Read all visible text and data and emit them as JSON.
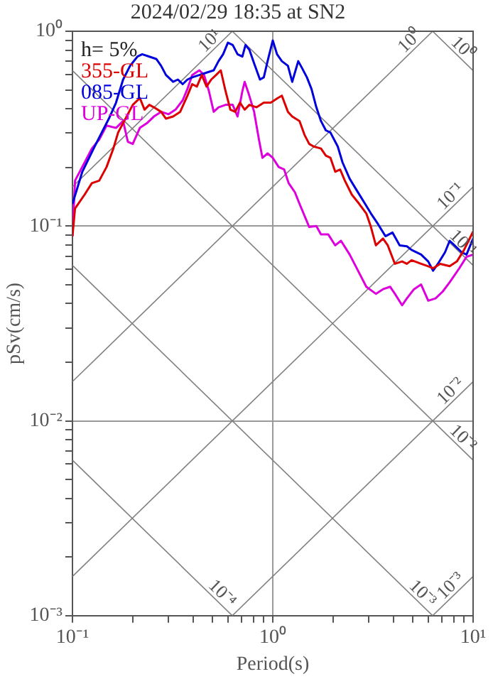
{
  "chart_data": {
    "type": "line",
    "title": "2024/02/29 18:35 at SN2",
    "xlabel": "Period(s)",
    "ylabel": "pSv(cm/s)",
    "annotations": [
      "h= 5%"
    ],
    "log": "xy",
    "legend": "top left",
    "grid": true,
    "xlim": [
      0.1,
      10
    ],
    "ylim": [
      0.001,
      1
    ],
    "xticks": [
      {
        "value": 0.1,
        "label": "10⁻¹"
      },
      {
        "value": 0.2,
        "label": null
      },
      {
        "value": 0.3,
        "label": null
      },
      {
        "value": 0.4,
        "label": null
      },
      {
        "value": 0.5,
        "label": null
      },
      {
        "value": 0.6,
        "label": null
      },
      {
        "value": 0.7,
        "label": null
      },
      {
        "value": 0.8,
        "label": null
      },
      {
        "value": 0.9,
        "label": null
      },
      {
        "value": 1,
        "label": "10⁰"
      },
      {
        "value": 2,
        "label": null
      },
      {
        "value": 3,
        "label": null
      },
      {
        "value": 4,
        "label": null
      },
      {
        "value": 5,
        "label": null
      },
      {
        "value": 6,
        "label": null
      },
      {
        "value": 7,
        "label": null
      },
      {
        "value": 8,
        "label": null
      },
      {
        "value": 9,
        "label": null
      },
      {
        "value": 10,
        "label": "10¹"
      }
    ],
    "yticks": [
      {
        "value": 0.001,
        "label": "10⁻³"
      },
      {
        "value": 0.002,
        "label": null
      },
      {
        "value": 0.003,
        "label": null
      },
      {
        "value": 0.004,
        "label": null
      },
      {
        "value": 0.005,
        "label": null
      },
      {
        "value": 0.006,
        "label": null
      },
      {
        "value": 0.007,
        "label": null
      },
      {
        "value": 0.008,
        "label": null
      },
      {
        "value": 0.009,
        "label": null
      },
      {
        "value": 0.01,
        "label": "10⁻²"
      },
      {
        "value": 0.02,
        "label": null
      },
      {
        "value": 0.03,
        "label": null
      },
      {
        "value": 0.04,
        "label": null
      },
      {
        "value": 0.05,
        "label": null
      },
      {
        "value": 0.06,
        "label": null
      },
      {
        "value": 0.07,
        "label": null
      },
      {
        "value": 0.08,
        "label": null
      },
      {
        "value": 0.09,
        "label": null
      },
      {
        "value": 0.1,
        "label": "10⁻¹"
      },
      {
        "value": 0.2,
        "label": null
      },
      {
        "value": 0.3,
        "label": null
      },
      {
        "value": 0.4,
        "label": null
      },
      {
        "value": 0.5,
        "label": null
      },
      {
        "value": 0.6,
        "label": null
      },
      {
        "value": 0.7,
        "label": null
      },
      {
        "value": 0.8,
        "label": null
      },
      {
        "value": 0.9,
        "label": null
      },
      {
        "value": 1,
        "label": "10⁰"
      }
    ],
    "series": [
      {
        "name": "355-GL",
        "color": "#dd0000",
        "x": [
          0.1,
          0.103,
          0.115,
          0.125,
          0.136,
          0.148,
          0.16,
          0.169,
          0.184,
          0.2,
          0.217,
          0.229,
          0.242,
          0.255,
          0.277,
          0.293,
          0.318,
          0.345,
          0.375,
          0.396,
          0.418,
          0.442,
          0.467,
          0.493,
          0.521,
          0.55,
          0.581,
          0.614,
          0.649,
          0.686,
          0.724,
          0.764,
          0.83,
          0.902,
          0.977,
          1.06,
          1.11,
          1.19,
          1.25,
          1.36,
          1.44,
          1.52,
          1.6,
          1.74,
          1.84,
          1.94,
          2.05,
          2.17,
          2.29,
          2.48,
          2.7,
          2.93,
          3.09,
          3.27,
          3.55,
          3.75,
          4.07,
          4.42,
          4.67,
          4.93,
          5.5,
          5.97,
          6.31,
          6.85,
          7.64,
          8.3,
          9.01,
          10
        ],
        "values": [
          0.0887,
          0.123,
          0.145,
          0.166,
          0.171,
          0.201,
          0.25,
          0.302,
          0.356,
          0.419,
          0.454,
          0.396,
          0.419,
          0.407,
          0.386,
          0.356,
          0.365,
          0.386,
          0.467,
          0.535,
          0.52,
          0.596,
          0.52,
          0.565,
          0.596,
          0.63,
          0.493,
          0.396,
          0.386,
          0.43,
          0.396,
          0.419,
          0.407,
          0.43,
          0.43,
          0.454,
          0.467,
          0.386,
          0.365,
          0.346,
          0.294,
          0.264,
          0.256,
          0.25,
          0.23,
          0.224,
          0.19,
          0.195,
          0.171,
          0.145,
          0.13,
          0.116,
          0.0989,
          0.0796,
          0.0863,
          0.0796,
          0.064,
          0.0658,
          0.064,
          0.0668,
          0.064,
          0.0622,
          0.0607,
          0.064,
          0.0622,
          0.0658,
          0.0754,
          0.0937
        ]
      },
      {
        "name": "085-GL",
        "color": "#0000dd",
        "x": [
          0.1,
          0.112,
          0.129,
          0.14,
          0.152,
          0.165,
          0.179,
          0.194,
          0.211,
          0.223,
          0.242,
          0.262,
          0.277,
          0.293,
          0.318,
          0.336,
          0.355,
          0.375,
          0.396,
          0.43,
          0.467,
          0.507,
          0.536,
          0.565,
          0.597,
          0.631,
          0.667,
          0.705,
          0.731,
          0.764,
          0.807,
          0.863,
          0.902,
          0.942,
          1.0,
          1.05,
          1.11,
          1.19,
          1.25,
          1.34,
          1.4,
          1.48,
          1.56,
          1.65,
          1.74,
          1.84,
          1.94,
          2.11,
          2.23,
          2.42,
          2.62,
          2.85,
          3.09,
          3.36,
          3.65,
          3.96,
          4.3,
          4.67,
          4.93,
          5.5,
          5.97,
          6.31,
          6.67,
          7.24,
          7.64,
          8.07,
          8.77,
          9.27,
          10
        ],
        "values": [
          0.13,
          0.19,
          0.256,
          0.302,
          0.356,
          0.43,
          0.565,
          0.665,
          0.741,
          0.762,
          0.741,
          0.721,
          0.665,
          0.596,
          0.55,
          0.565,
          0.535,
          0.565,
          0.58,
          0.596,
          0.613,
          0.63,
          0.702,
          0.762,
          0.873,
          0.85,
          0.762,
          0.741,
          0.85,
          0.804,
          0.684,
          0.565,
          0.58,
          0.702,
          0.897,
          0.762,
          0.702,
          0.665,
          0.55,
          0.702,
          0.647,
          0.58,
          0.506,
          0.407,
          0.346,
          0.31,
          0.302,
          0.256,
          0.212,
          0.175,
          0.153,
          0.133,
          0.116,
          0.102,
          0.0887,
          0.0926,
          0.0796,
          0.0787,
          0.0754,
          0.0714,
          0.0658,
          0.059,
          0.064,
          0.0733,
          0.084,
          0.0796,
          0.0733,
          0.0714,
          0.0863
        ]
      },
      {
        "name": "UP-GL",
        "color": "#dd00dd",
        "x": [
          0.1,
          0.103,
          0.115,
          0.125,
          0.136,
          0.148,
          0.165,
          0.179,
          0.189,
          0.2,
          0.217,
          0.235,
          0.255,
          0.277,
          0.302,
          0.327,
          0.355,
          0.375,
          0.396,
          0.43,
          0.454,
          0.48,
          0.507,
          0.536,
          0.581,
          0.631,
          0.667,
          0.705,
          0.724,
          0.757,
          0.807,
          0.853,
          0.888,
          0.942,
          1.0,
          1.07,
          1.14,
          1.2,
          1.29,
          1.36,
          1.52,
          1.65,
          1.74,
          1.89,
          2.05,
          2.19,
          2.42,
          2.7,
          2.93,
          3.27,
          3.55,
          3.85,
          4.07,
          4.42,
          4.67,
          5.07,
          5.5,
          5.97,
          6.49,
          7.05,
          7.64,
          8.53,
          9.27,
          10
        ],
        "values": [
          0.0887,
          0.171,
          0.212,
          0.25,
          0.278,
          0.328,
          0.319,
          0.346,
          0.271,
          0.264,
          0.319,
          0.337,
          0.365,
          0.386,
          0.375,
          0.396,
          0.442,
          0.506,
          0.596,
          0.63,
          0.596,
          0.493,
          0.386,
          0.407,
          0.419,
          0.419,
          0.365,
          0.493,
          0.55,
          0.48,
          0.386,
          0.278,
          0.224,
          0.236,
          0.224,
          0.201,
          0.195,
          0.166,
          0.149,
          0.13,
          0.0989,
          0.1,
          0.0907,
          0.0907,
          0.0796,
          0.084,
          0.0714,
          0.0574,
          0.0488,
          0.0449,
          0.0474,
          0.0488,
          0.0449,
          0.0392,
          0.0425,
          0.0474,
          0.0501,
          0.0414,
          0.0425,
          0.0461,
          0.0515,
          0.0607,
          0.0695,
          0.0714
        ]
      },
      {
        "name": "10⁻⁴",
        "color": "#808080",
        "x": [
          0.1,
          0.628
        ],
        "values": [
          0.00628,
          0.001
        ]
      },
      {
        "name": "10⁻³",
        "color": "#808080",
        "x": [
          0.1,
          6.28
        ],
        "values": [
          0.0628,
          0.001
        ]
      },
      {
        "name": "10⁻²",
        "color": "#808080",
        "x": [
          0.1,
          10
        ],
        "values": [
          0.628,
          0.00628
        ]
      },
      {
        "name": "10⁻¹",
        "color": "#808080",
        "x": [
          0.628,
          10
        ],
        "values": [
          1,
          0.0628
        ]
      },
      {
        "name": "10⁰",
        "color": "#808080",
        "x": [
          6.28,
          10
        ],
        "values": [
          1,
          0.628
        ]
      },
      {
        "name": "10¹",
        "color": "#808080",
        "x": [
          0.1,
          0.628
        ],
        "values": [
          0.159,
          1
        ]
      },
      {
        "name": "10⁰",
        "color": "#808080",
        "x": [
          0.1,
          6.28
        ],
        "values": [
          0.0159,
          1
        ]
      },
      {
        "name": "10⁻¹",
        "color": "#808080",
        "x": [
          0.1,
          10
        ],
        "values": [
          0.00159,
          0.159
        ]
      },
      {
        "name": "10⁻²",
        "color": "#808080",
        "x": [
          0.628,
          10
        ],
        "values": [
          0.001,
          0.0159
        ]
      },
      {
        "name": "10⁻³",
        "color": "#808080",
        "x": [
          6.28,
          10
        ],
        "values": [
          0.001,
          0.00159
        ]
      }
    ]
  }
}
